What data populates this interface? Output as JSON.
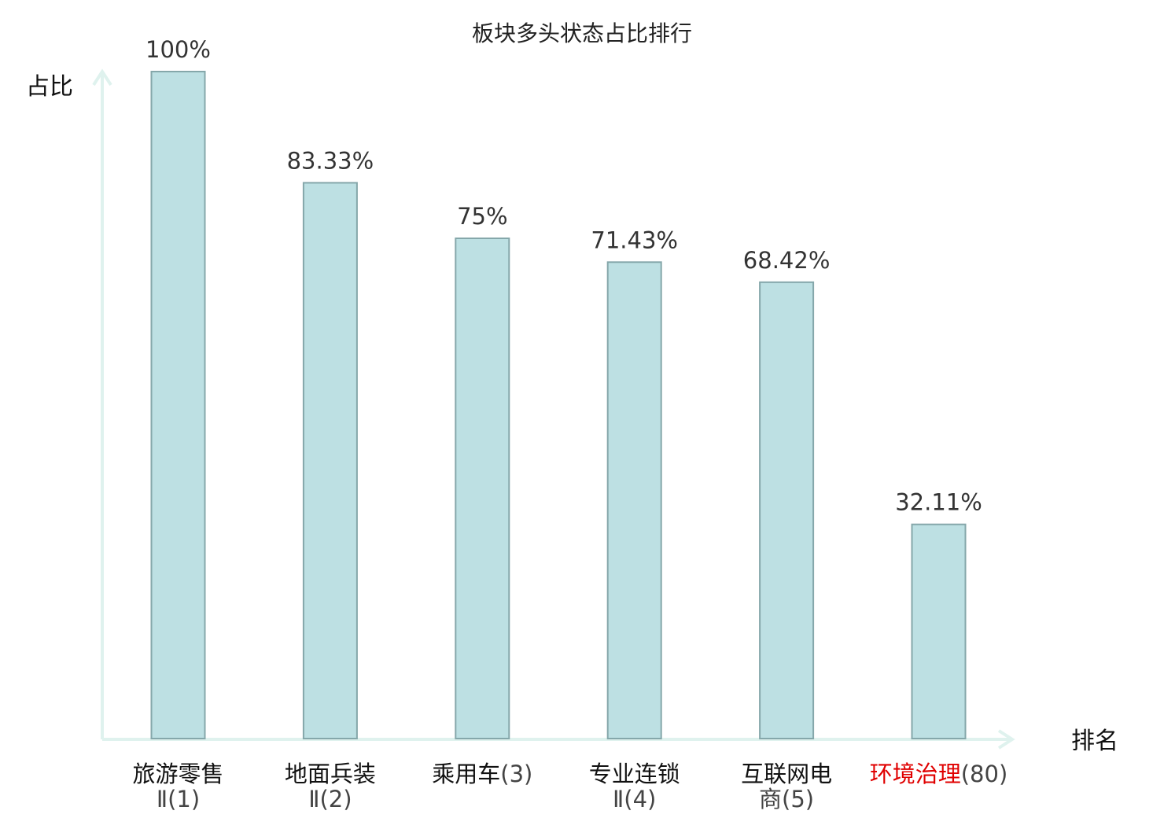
{
  "chart_data": {
    "type": "bar",
    "title": "板块多头状态占比排行",
    "ylabel": "占比",
    "xlabel": "排名",
    "ylim": [
      0,
      100
    ],
    "unit": "%",
    "grid": false,
    "legend": "none",
    "categories": [
      {
        "name": "旅游零售",
        "rank": "Ⅱ(1)",
        "value": 100,
        "label": "100%",
        "highlight": false
      },
      {
        "name": "地面兵装",
        "rank": "Ⅱ(2)",
        "value": 83.33,
        "label": "83.33%",
        "highlight": false
      },
      {
        "name": "乘用车",
        "rank": "(3)",
        "value": 75,
        "label": "75%",
        "highlight": false
      },
      {
        "name": "专业连锁",
        "rank": "Ⅱ(4)",
        "value": 71.43,
        "label": "71.43%",
        "highlight": false
      },
      {
        "name": "互联网电",
        "rank": "商(5)",
        "value": 68.42,
        "label": "68.42%",
        "highlight": false
      },
      {
        "name": "环境治理",
        "rank": "(80)",
        "value": 32.11,
        "label": "32.11%",
        "highlight": true
      }
    ],
    "colors": {
      "bar_fill": "#bde0e3",
      "bar_stroke": "#85a7aa",
      "axis": "#dff2ee",
      "highlight_text": "#e00000"
    }
  }
}
